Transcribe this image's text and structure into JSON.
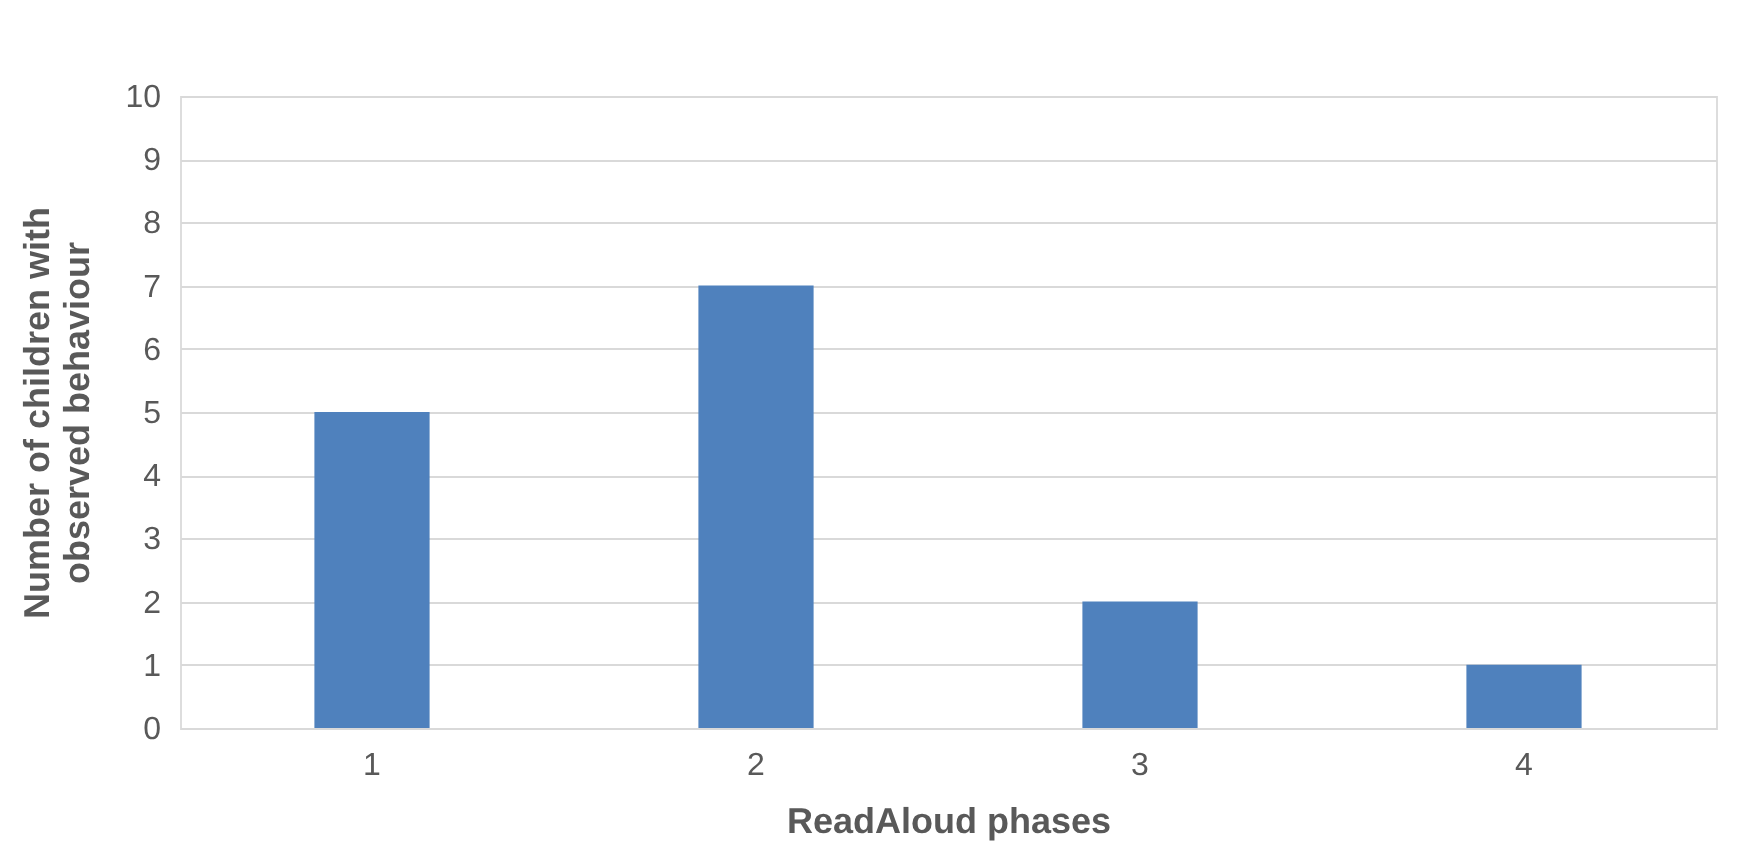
{
  "chart_data": {
    "type": "bar",
    "xlabel": "ReadAloud phases",
    "ylabel": "Number of children with observed behaviour",
    "categories": [
      "1",
      "2",
      "3",
      "4"
    ],
    "values": [
      5,
      7,
      2,
      1
    ],
    "color": "#4f81bd",
    "ylim": [
      0,
      10
    ],
    "yticks": [
      0,
      1,
      2,
      3,
      4,
      5,
      6,
      7,
      8,
      9,
      10
    ],
    "grid": "y"
  }
}
